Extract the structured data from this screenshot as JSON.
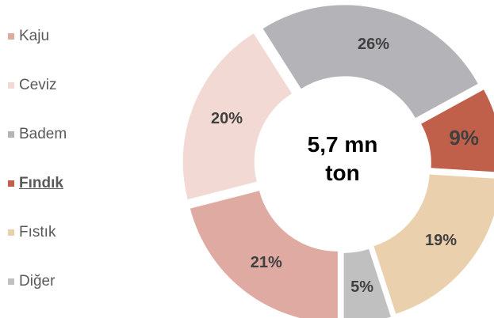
{
  "chart_data": {
    "type": "pie",
    "style": "donut-exploded",
    "center_label_lines": [
      "5,7 mn",
      "ton"
    ],
    "highlighted": "Fındık",
    "legend_position": "left",
    "categories": [
      "Kaju",
      "Ceviz",
      "Badem",
      "Fındık",
      "Fıstık",
      "Diğer"
    ],
    "values": [
      21,
      20,
      26,
      9,
      19,
      5
    ],
    "value_labels": [
      "21%",
      "20%",
      "26%",
      "9%",
      "19%",
      "5%"
    ],
    "colors": [
      "#deaaa2",
      "#f2d9d4",
      "#b4b4b8",
      "#c0604a",
      "#ead0ad",
      "#c0c0c0"
    ]
  }
}
